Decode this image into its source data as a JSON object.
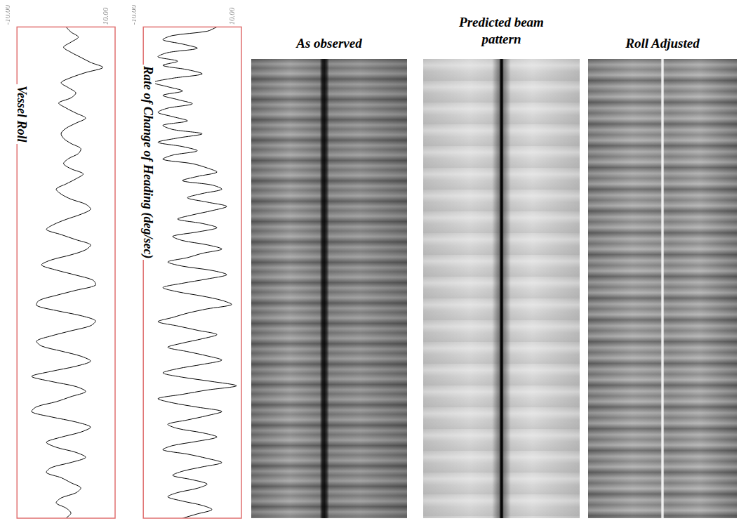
{
  "chart_data": [
    {
      "type": "line",
      "title": "Vessel Roll",
      "values": [
        0,
        1,
        2.5,
        1,
        -0.5,
        1,
        3,
        5,
        7.5,
        4,
        1,
        -1,
        0.5,
        2,
        1,
        -1.5,
        0,
        2,
        4,
        2,
        0,
        -1,
        -0.5,
        1,
        3,
        2.5,
        0.5,
        -0.5,
        1,
        3.5,
        2,
        0,
        -2,
        -1,
        1,
        4,
        5,
        3,
        0,
        -2.5,
        -4,
        -1,
        2,
        5,
        4,
        1,
        -3,
        -5,
        -2,
        2,
        5.5,
        6,
        2,
        -2,
        -5.5,
        -6,
        -2,
        3,
        6,
        5,
        1,
        -3,
        -6,
        -5,
        -1,
        3,
        5,
        2,
        -3,
        -7,
        -3,
        2,
        4,
        1,
        -2,
        -6,
        -7,
        -3,
        2,
        5,
        3,
        -1,
        -4,
        -2,
        2,
        4,
        1,
        -3,
        -4,
        -1,
        1,
        3,
        2,
        -1,
        -2,
        0,
        1,
        0
      ],
      "color": "#000000",
      "xlim": [
        -10,
        10
      ],
      "xticks": [
        {
          "value": -10,
          "label": "-10.00"
        },
        {
          "value": 10,
          "label": "10.00"
        }
      ],
      "grid": false,
      "tick_labels": "x"
    },
    {
      "type": "line",
      "title": "Rate of Change of Heading (deg/sec)",
      "values": [
        5,
        3,
        -4,
        -6,
        -2,
        1,
        -5,
        -7,
        -3,
        -6,
        -1,
        2,
        -4,
        -8,
        -5,
        -2,
        -6,
        -3,
        0,
        -5,
        -7,
        -4,
        -1,
        -6,
        -4,
        2,
        -3,
        -7,
        -2,
        1,
        -4,
        -6,
        0,
        3,
        5,
        1,
        -2,
        4,
        6,
        2,
        -1,
        3,
        7,
        4,
        0,
        -3,
        2,
        5,
        1,
        -4,
        -2,
        3,
        6,
        2,
        -1,
        -5,
        -2,
        4,
        7,
        3,
        -2,
        -6,
        -3,
        2,
        6,
        8,
        3,
        -1,
        -4,
        -7,
        -3,
        1,
        5,
        2,
        -2,
        -5,
        -1,
        3,
        6,
        2,
        -3,
        -6,
        -2,
        4,
        9,
        3,
        -2,
        -7,
        -4,
        1,
        6,
        3,
        -1,
        -5,
        -3,
        2,
        5,
        1,
        -4,
        -6,
        -1,
        3,
        6,
        2,
        -2,
        -4,
        0,
        3,
        1,
        -3,
        -5,
        -2,
        2,
        4,
        1,
        -2
      ],
      "color": "#000000",
      "xlim": [
        -10,
        10
      ],
      "xticks": [
        {
          "value": -10,
          "label": "-10.00"
        },
        {
          "value": 10,
          "label": "10.00"
        }
      ],
      "grid": false,
      "tick_labels": "x"
    }
  ],
  "images": [
    {
      "title": "As observed"
    },
    {
      "title": "Predicted beam pattern"
    },
    {
      "title": "Roll Adjusted"
    }
  ]
}
